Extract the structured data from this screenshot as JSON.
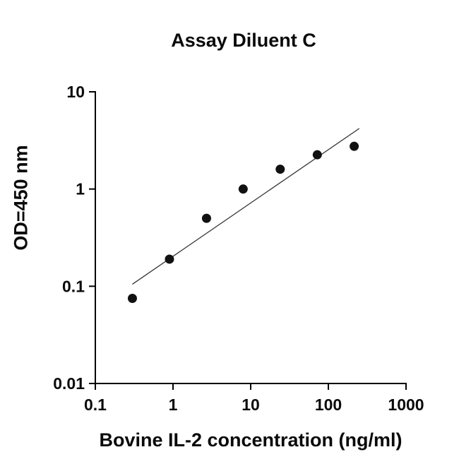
{
  "chart_data": {
    "type": "scatter",
    "title": "Assay Diluent C",
    "xlabel": "Bovine IL-2 concentration (ng/ml)",
    "ylabel": "OD=450 nm",
    "x_scale": "log",
    "y_scale": "log",
    "xlim": [
      0.1,
      1000
    ],
    "ylim": [
      0.01,
      10
    ],
    "x_ticks": [
      0.1,
      1,
      10,
      100,
      1000
    ],
    "x_tick_labels": [
      "0.1",
      "1",
      "10",
      "100",
      "1000"
    ],
    "y_ticks": [
      0.01,
      0.1,
      1,
      10
    ],
    "y_tick_labels": [
      "0.01",
      "0.1",
      "1",
      "10"
    ],
    "grid": false,
    "legend": false,
    "points": {
      "x": [
        0.3,
        0.9,
        2.7,
        8,
        24,
        72,
        215
      ],
      "y": [
        0.075,
        0.19,
        0.5,
        1.0,
        1.6,
        2.25,
        2.75
      ]
    },
    "fit_line": {
      "x": [
        0.3,
        250
      ],
      "y": [
        0.105,
        4.2
      ]
    },
    "marker_color": "#111111",
    "line_color": "#333333",
    "axis_color": "#000000"
  }
}
